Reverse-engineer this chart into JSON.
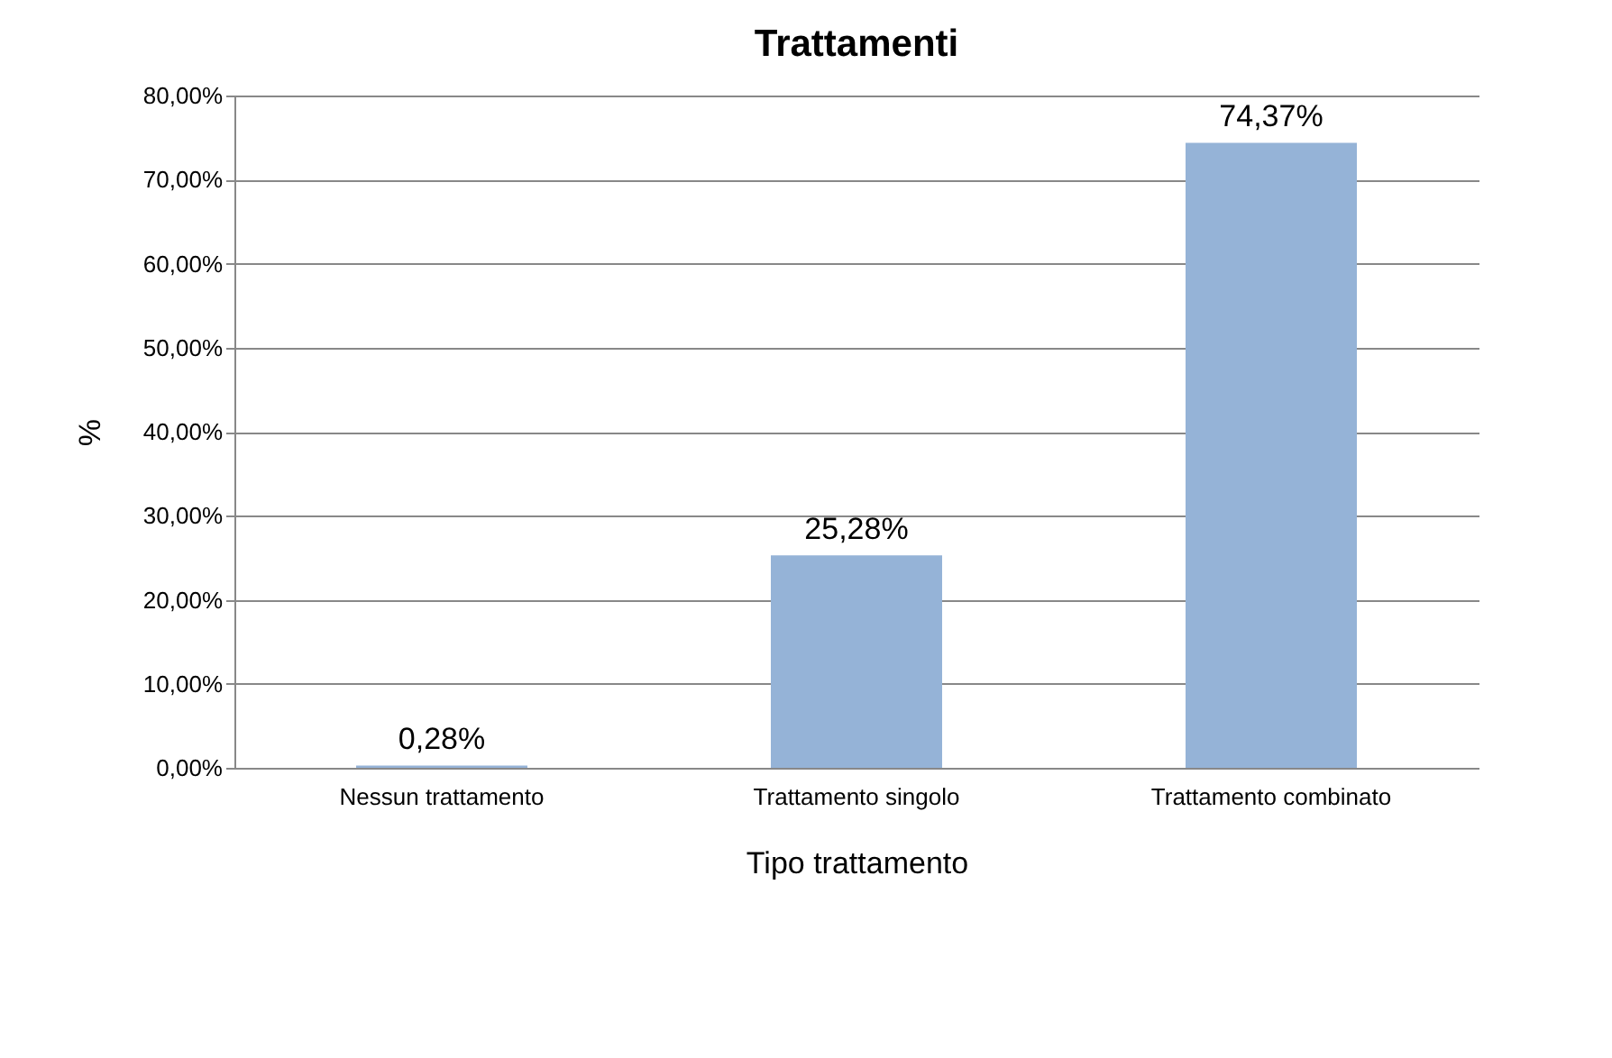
{
  "chart_data": {
    "type": "bar",
    "title": "Trattamenti",
    "xlabel": "Tipo trattamento",
    "ylabel": "%",
    "categories": [
      "Nessun trattamento",
      "Trattamento singolo",
      "Trattamento combinato"
    ],
    "values": [
      0.28,
      25.28,
      74.37
    ],
    "value_labels": [
      "0,28%",
      "25,28%",
      "74,37%"
    ],
    "color": "#95b3d7",
    "ylim": [
      0,
      80
    ],
    "yticks": [
      {
        "value": 0,
        "label": "0,00%"
      },
      {
        "value": 10,
        "label": "10,00%"
      },
      {
        "value": 20,
        "label": "20,00%"
      },
      {
        "value": 30,
        "label": "30,00%"
      },
      {
        "value": 40,
        "label": "40,00%"
      },
      {
        "value": 50,
        "label": "50,00%"
      },
      {
        "value": 60,
        "label": "60,00%"
      },
      {
        "value": 70,
        "label": "70,00%"
      },
      {
        "value": 80,
        "label": "80,00%"
      }
    ],
    "grid": "y"
  }
}
